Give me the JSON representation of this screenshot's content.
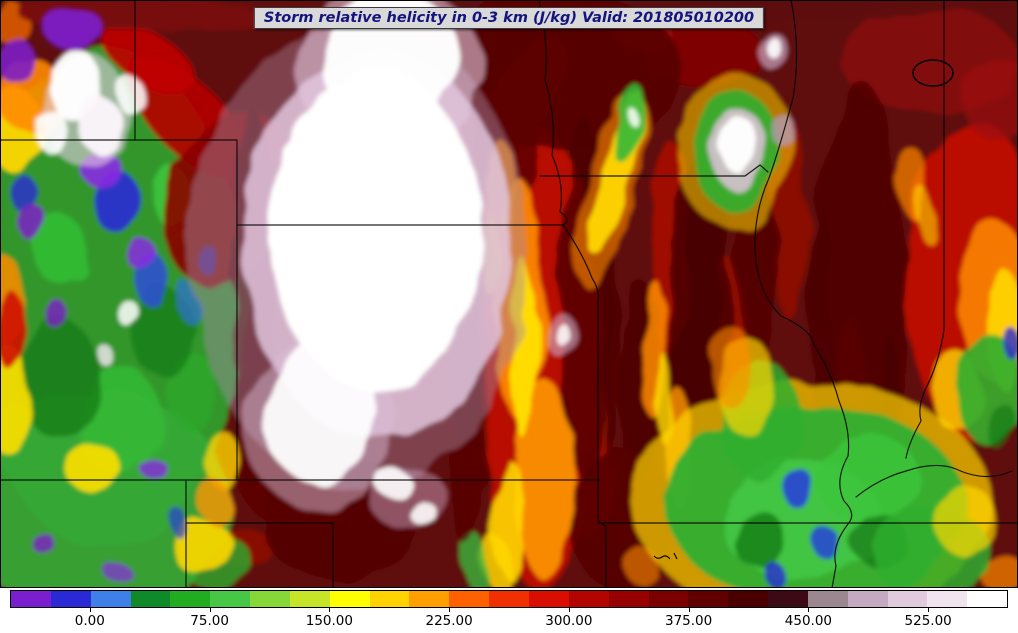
{
  "title_bar": {
    "text": "Storm relative helicity in 0-3 km (J/kg) Valid: 201805010200"
  },
  "colorbar": {
    "border_color": "#000000",
    "segment_colors": [
      "#7a1fd0",
      "#2929d6",
      "#3f7fe8",
      "#0e8a28",
      "#21ac21",
      "#46c846",
      "#86d838",
      "#c6e428",
      "#ffff00",
      "#ffd200",
      "#ffa000",
      "#ff6000",
      "#f03000",
      "#d80e00",
      "#b40400",
      "#960000",
      "#7a0000",
      "#600000",
      "#4a0000",
      "#3c0a14",
      "#9c8690",
      "#c4aac0",
      "#e2cade",
      "#f2e4ee",
      "#ffffff"
    ],
    "ticks": [
      {
        "label": "0.00",
        "pos_pct": 8
      },
      {
        "label": "75.00",
        "pos_pct": 20
      },
      {
        "label": "150.00",
        "pos_pct": 32
      },
      {
        "label": "225.00",
        "pos_pct": 44
      },
      {
        "label": "300.00",
        "pos_pct": 56
      },
      {
        "label": "375.00",
        "pos_pct": 68
      },
      {
        "label": "450.00",
        "pos_pct": 80
      },
      {
        "label": "525.00",
        "pos_pct": 92
      }
    ]
  },
  "map": {
    "base_color": "#5e0707",
    "boundary_color": "#000000",
    "high_value_color": "#ffffff"
  },
  "chart_data": {
    "type": "heatmap",
    "title": "Storm relative helicity in 0-3 km (J/kg) Valid: 201805010200",
    "unit": "J/kg",
    "colorbar_ticks": [
      "0.00",
      "75.00",
      "150.00",
      "225.00",
      "300.00",
      "375.00",
      "450.00",
      "525.00"
    ],
    "value_range_estimate": [
      -50,
      575
    ],
    "legend_position": "bottom"
  }
}
